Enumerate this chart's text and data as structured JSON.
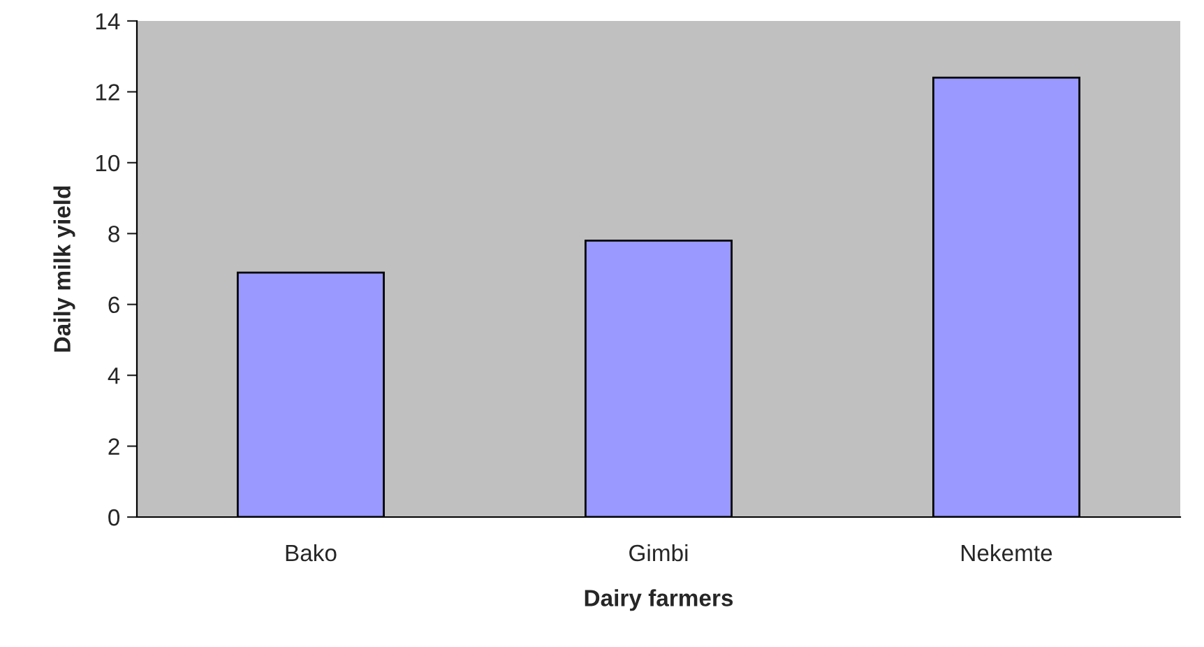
{
  "chart_data": {
    "type": "bar",
    "xlabel": "Dairy farmers",
    "ylabel": "Daily milk yield",
    "categories": [
      "Bako",
      "Gimbi",
      "Nekemte"
    ],
    "values": [
      6.9,
      7.8,
      12.4
    ],
    "color": "#9999ff",
    "ylim": [
      0,
      14
    ],
    "yticks": [
      0,
      2,
      4,
      6,
      8,
      10,
      12,
      14
    ],
    "grid": false,
    "legend": false
  }
}
